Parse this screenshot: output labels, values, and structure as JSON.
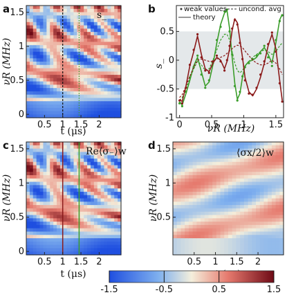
{
  "chart_data": [
    {
      "panel": "a",
      "type": "heatmap",
      "annotation": "s_",
      "xlabel": "t (μs)",
      "ylabel": "νR (MHz)",
      "xlim": [
        0,
        2.6
      ],
      "ylim": [
        -0.05,
        1.6
      ],
      "xticks": [
        "0.5",
        "1",
        "1.5",
        "2"
      ],
      "yticks": [
        "0",
        "0.5",
        "1",
        "1.5"
      ],
      "vlines": [
        {
          "x": 1.0,
          "color": "#111111",
          "style": "dashed"
        },
        {
          "x": 1.45,
          "color": "#3a9d2a",
          "style": "dotted"
        }
      ]
    },
    {
      "panel": "b",
      "type": "line",
      "xlabel": "νR (MHz)",
      "ylabel": "s_",
      "xlim": [
        -0.05,
        1.62
      ],
      "ylim": [
        -1.0,
        0.95
      ],
      "xticks": [
        "0",
        "0.5",
        "1",
        "1.5"
      ],
      "yticks": [
        "-1",
        "-0.5",
        "0",
        "0.5"
      ],
      "shaded_band": [
        -0.5,
        0.5
      ],
      "legend": {
        "weak": "weak values",
        "theory": "theory",
        "avg": "uncond. avg"
      },
      "series": [
        {
          "color": "#3a9d2a",
          "x": [
            0.0,
            0.04,
            0.1,
            0.16,
            0.22,
            0.28,
            0.34,
            0.4,
            0.46,
            0.52,
            0.58,
            0.64,
            0.7,
            0.74,
            0.78,
            0.82,
            0.86,
            0.9,
            0.94,
            0.98,
            1.02,
            1.08,
            1.14,
            1.2,
            1.26,
            1.32,
            1.38,
            1.44,
            1.5,
            1.56,
            1.6
          ],
          "theory": [
            -0.72,
            -0.78,
            -0.58,
            -0.35,
            -0.1,
            0.05,
            -0.2,
            -0.45,
            -0.38,
            -0.08,
            0.3,
            0.62,
            0.82,
            0.86,
            0.55,
            0.05,
            -0.4,
            -0.68,
            -0.58,
            -0.3,
            -0.1,
            -0.02,
            0.0,
            0.05,
            0.15,
            0.22,
            0.1,
            -0.05,
            0.3,
            0.7,
            0.8
          ],
          "avg": [
            -0.7,
            -0.65,
            -0.5,
            -0.32,
            -0.15,
            -0.02,
            -0.08,
            -0.18,
            -0.15,
            0.0,
            0.18,
            0.35,
            0.45,
            0.45,
            0.35,
            0.15,
            -0.05,
            -0.18,
            -0.22,
            -0.18,
            -0.1,
            -0.02,
            0.05,
            0.1,
            0.15,
            0.18,
            0.15,
            0.1,
            0.15,
            0.25,
            0.3
          ],
          "weak": [
            -0.75,
            -0.8,
            -0.55,
            -0.3,
            -0.12,
            0.08,
            -0.25,
            -0.48,
            -0.35,
            -0.05,
            0.35,
            0.58,
            0.85,
            0.88,
            0.5,
            0.1,
            -0.45,
            -0.7,
            -0.55,
            -0.28,
            -0.12,
            -0.05,
            0.02,
            0.08,
            0.12,
            0.25,
            0.05,
            -0.1,
            0.35,
            0.68,
            0.78
          ]
        },
        {
          "color": "#8b1a1a",
          "x": [
            0.0,
            0.04,
            0.1,
            0.16,
            0.22,
            0.28,
            0.34,
            0.4,
            0.46,
            0.52,
            0.58,
            0.64,
            0.7,
            0.74,
            0.78,
            0.82,
            0.86,
            0.9,
            0.94,
            0.98,
            1.02,
            1.08,
            1.14,
            1.2,
            1.26,
            1.32,
            1.38,
            1.44,
            1.5,
            1.56,
            1.6
          ],
          "theory": [
            -0.68,
            -0.72,
            -0.45,
            -0.1,
            0.15,
            0.42,
            0.1,
            -0.15,
            -0.2,
            -0.05,
            0.05,
            0.0,
            -0.15,
            -0.02,
            0.2,
            0.52,
            0.72,
            0.65,
            0.35,
            0.05,
            -0.3,
            -0.55,
            -0.62,
            -0.5,
            -0.3,
            -0.05,
            0.25,
            0.45,
            0.2,
            -0.35,
            -0.7
          ],
          "avg": [
            -0.65,
            -0.6,
            -0.45,
            -0.28,
            -0.12,
            0.0,
            0.02,
            0.0,
            -0.02,
            -0.02,
            0.02,
            0.05,
            0.08,
            0.12,
            0.16,
            0.2,
            0.24,
            0.26,
            0.25,
            0.22,
            0.16,
            0.08,
            0.0,
            -0.05,
            -0.08,
            -0.08,
            -0.05,
            0.0,
            -0.05,
            -0.15,
            -0.25
          ],
          "weak": [
            -0.7,
            -0.75,
            -0.48,
            -0.08,
            0.18,
            0.45,
            0.05,
            -0.18,
            -0.22,
            -0.02,
            0.08,
            -0.02,
            -0.18,
            0.0,
            0.25,
            0.55,
            0.7,
            0.62,
            0.3,
            0.02,
            -0.35,
            -0.58,
            -0.6,
            -0.48,
            -0.25,
            -0.02,
            0.28,
            0.48,
            0.15,
            -0.4,
            -0.72
          ]
        }
      ]
    },
    {
      "panel": "c",
      "type": "heatmap",
      "annotation": "Re⟨σ₋⟩w",
      "xlabel": "t (μs)",
      "ylabel": "νR (MHz)",
      "xlim": [
        0,
        2.6
      ],
      "ylim": [
        -0.05,
        1.6
      ],
      "xticks": [
        "0.5",
        "1",
        "1.5",
        "2"
      ],
      "yticks": [
        "0",
        "0.5",
        "1",
        "1.5"
      ],
      "vlines": [
        {
          "x": 1.0,
          "color": "#8b1a1a",
          "style": "solid"
        },
        {
          "x": 1.45,
          "color": "#3a9d2a",
          "style": "solid"
        }
      ]
    },
    {
      "panel": "d",
      "type": "heatmap",
      "annotation": "⟨σx/2⟩w",
      "xlabel": "t (μs)",
      "ylabel": "νR (MHz)",
      "xlim": [
        0,
        2.6
      ],
      "ylim": [
        -0.05,
        1.6
      ],
      "xticks": [
        "0.5",
        "1",
        "1.5",
        "2"
      ],
      "yticks": [
        "0.5",
        "1",
        "1.5"
      ]
    },
    {
      "panel": "colorbar",
      "type": "colorbar",
      "range": [
        -1.5,
        1.5
      ],
      "ticks": [
        "-1.5",
        "-0.5",
        "0.5",
        "1.5"
      ]
    }
  ],
  "colors": {
    "blue": "#2f5fe0",
    "mid": "#f3eedc",
    "red": "#b31b2e",
    "darkred": "#7a0e1c",
    "green": "#3a9d2a",
    "dark_red_line": "#8b1a1a"
  }
}
